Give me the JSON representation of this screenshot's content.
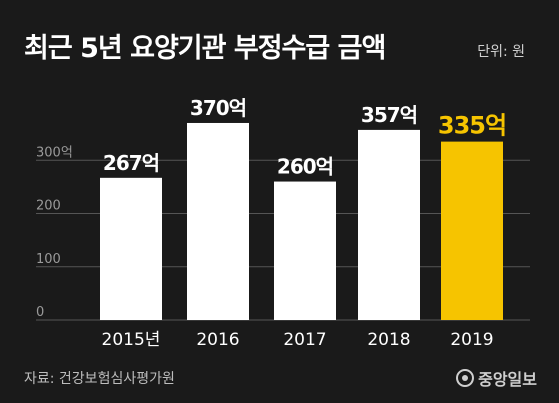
{
  "title": "최근 5년 요양기관 부정수급 금액",
  "unit_label": "단위: 원",
  "source": "자료: 건강보험심사평가원",
  "logo_text": "중앙일보",
  "colors": {
    "background": "#1a1a1a",
    "bar_default": "#ffffff",
    "bar_highlight": "#f6c400",
    "label_default": "#ffffff",
    "tick": "#9a9a9a",
    "grid": "#555555"
  },
  "chart_data": {
    "type": "bar",
    "categories": [
      "2015년",
      "2016",
      "2017",
      "2018",
      "2019"
    ],
    "values": [
      267,
      370,
      260,
      357,
      335
    ],
    "value_labels": [
      "267억",
      "370억",
      "260억",
      "357억",
      "335억"
    ],
    "highlight_index": 4,
    "y_ticks": [
      0,
      100,
      200,
      300
    ],
    "y_tick_labels": [
      "0",
      "100",
      "200",
      "300억"
    ],
    "ylim": [
      0,
      400
    ],
    "grid": true,
    "title": "최근 5년 요양기관 부정수급 금액"
  }
}
